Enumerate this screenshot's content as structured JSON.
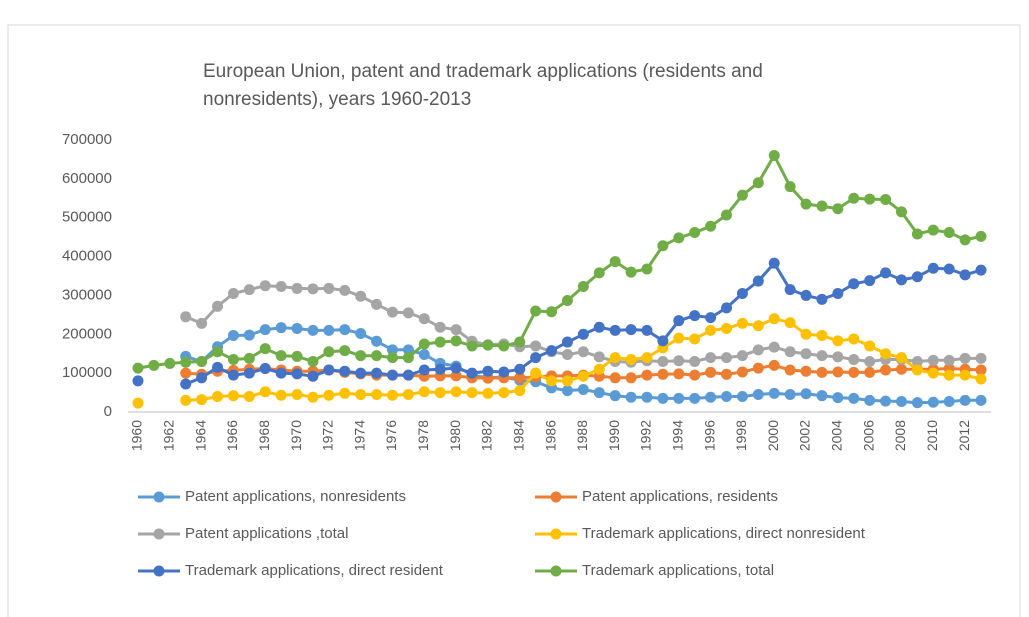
{
  "chart_data": {
    "type": "line",
    "title": "European Union, patent and trademark applications (residents and nonresidents), years 1960-2013",
    "categories": [
      "1960",
      null,
      "1962",
      null,
      "1964",
      null,
      "1966",
      null,
      "1968",
      null,
      "1970",
      null,
      "1972",
      null,
      "1974",
      null,
      "1976",
      null,
      "1978",
      null,
      "1980",
      null,
      "1982",
      null,
      "1984",
      null,
      "1986",
      null,
      "1988",
      null,
      "1990",
      null,
      "1992",
      null,
      "1994",
      null,
      "1996",
      null,
      "1998",
      null,
      "2000",
      null,
      "2002",
      null,
      "2004",
      null,
      "2006",
      null,
      "2008",
      null,
      "2010",
      null,
      "2012",
      null
    ],
    "ylim": [
      0,
      700000
    ],
    "yticks": [
      0,
      100000,
      200000,
      300000,
      400000,
      500000,
      600000,
      700000
    ],
    "grid": false,
    "series": [
      {
        "name": "Patent applications, nonresidents",
        "color": "#5b9bd5",
        "values": [
          null,
          null,
          null,
          143000,
          130000,
          168000,
          197000,
          198000,
          212000,
          217000,
          215000,
          210000,
          210000,
          212000,
          202000,
          182000,
          160000,
          160000,
          148000,
          125000,
          118000,
          95000,
          88000,
          90000,
          82000,
          78000,
          62000,
          55000,
          58000,
          50000,
          42000,
          38000,
          38000,
          35000,
          35000,
          35000,
          38000,
          40000,
          40000,
          45000,
          48000,
          45000,
          47000,
          42000,
          37000,
          35000,
          30000,
          28000,
          27000,
          24000,
          25000,
          27000,
          30000,
          30000
        ]
      },
      {
        "name": "Patent applications, residents",
        "color": "#ed7d31",
        "values": [
          null,
          null,
          null,
          100000,
          97000,
          105000,
          107000,
          110000,
          112000,
          108000,
          105000,
          105000,
          108000,
          102000,
          98000,
          95000,
          95000,
          95000,
          92000,
          93000,
          93000,
          88000,
          87000,
          88000,
          88000,
          90000,
          93000,
          93000,
          95000,
          92000,
          88000,
          88000,
          95000,
          97000,
          98000,
          95000,
          102000,
          97000,
          103000,
          113000,
          120000,
          108000,
          105000,
          102000,
          103000,
          102000,
          102000,
          108000,
          110000,
          110000,
          110000,
          112000,
          110000,
          108000
        ]
      },
      {
        "name": "Patent applications ,total",
        "color": "#a5a5a5",
        "values": [
          null,
          null,
          null,
          245000,
          228000,
          272000,
          305000,
          315000,
          325000,
          323000,
          318000,
          317000,
          318000,
          313000,
          298000,
          277000,
          257000,
          255000,
          240000,
          218000,
          212000,
          182000,
          173000,
          175000,
          168000,
          170000,
          155000,
          148000,
          155000,
          142000,
          130000,
          128000,
          132000,
          130000,
          132000,
          130000,
          140000,
          140000,
          145000,
          160000,
          167000,
          155000,
          150000,
          145000,
          142000,
          135000,
          130000,
          135000,
          135000,
          130000,
          133000,
          133000,
          138000,
          138000
        ]
      },
      {
        "name": "Trademark applications, direct nonresident",
        "color": "#ffc000",
        "values": [
          23000,
          null,
          null,
          30000,
          32000,
          40000,
          42000,
          40000,
          52000,
          43000,
          45000,
          38000,
          43000,
          48000,
          45000,
          45000,
          43000,
          45000,
          52000,
          50000,
          52000,
          50000,
          48000,
          50000,
          55000,
          100000,
          80000,
          80000,
          92000,
          110000,
          140000,
          135000,
          140000,
          165000,
          190000,
          188000,
          210000,
          215000,
          228000,
          222000,
          240000,
          230000,
          200000,
          197000,
          183000,
          188000,
          170000,
          150000,
          140000,
          108000,
          100000,
          95000,
          95000,
          85000
        ]
      },
      {
        "name": "Trademark applications, direct resident",
        "color": "#4472c4",
        "values": [
          80000,
          null,
          null,
          72000,
          88000,
          115000,
          95000,
          100000,
          112000,
          100000,
          98000,
          92000,
          108000,
          105000,
          100000,
          100000,
          95000,
          95000,
          108000,
          110000,
          113000,
          100000,
          105000,
          103000,
          110000,
          140000,
          158000,
          180000,
          200000,
          218000,
          210000,
          212000,
          210000,
          183000,
          235000,
          248000,
          243000,
          268000,
          305000,
          337000,
          383000,
          315000,
          300000,
          290000,
          305000,
          330000,
          338000,
          358000,
          340000,
          348000,
          370000,
          368000,
          353000,
          365000
        ]
      },
      {
        "name": "Trademark applications, total",
        "color": "#70ad47",
        "values": [
          113000,
          120000,
          125000,
          128000,
          130000,
          155000,
          135000,
          138000,
          163000,
          145000,
          143000,
          130000,
          155000,
          158000,
          145000,
          145000,
          140000,
          140000,
          175000,
          180000,
          183000,
          170000,
          172000,
          170000,
          180000,
          260000,
          258000,
          287000,
          323000,
          358000,
          387000,
          360000,
          368000,
          428000,
          448000,
          462000,
          478000,
          507000,
          558000,
          590000,
          660000,
          580000,
          535000,
          530000,
          523000,
          550000,
          548000,
          547000,
          515000,
          458000,
          468000,
          462000,
          443000,
          452000
        ]
      }
    ]
  }
}
